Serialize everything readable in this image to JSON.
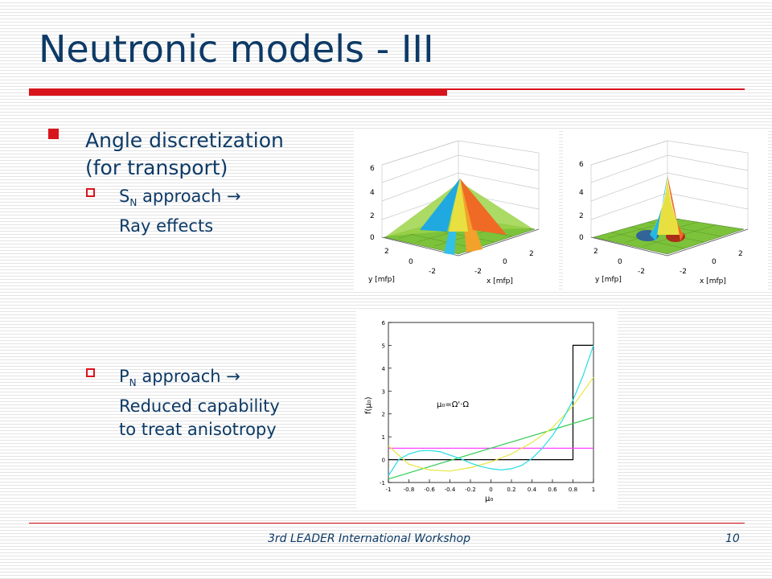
{
  "title": "Neutronic models - III",
  "colors": {
    "accent": "#d8141c",
    "text": "#0d3a66"
  },
  "bullet_main": {
    "line1": "Angle discretization",
    "line2": "(for transport)"
  },
  "sn": {
    "prefix": "S",
    "sub": "N",
    "rest": " approach →",
    "line2": "Ray effects"
  },
  "pn": {
    "prefix": "P",
    "sub": "N",
    "rest": " approach →",
    "line2": "Reduced capability",
    "line3": "to treat anisotropy"
  },
  "plot3d": {
    "z_ticks": [
      "0",
      "2",
      "4",
      "6"
    ],
    "y_ticks": [
      "2",
      "0",
      "-2"
    ],
    "x_ticks": [
      "-2",
      "0",
      "2"
    ],
    "y_label": "y [mfp]",
    "x_label": "x [mfp]"
  },
  "chart_data": {
    "type": "line",
    "xlabel": "μ₀",
    "ylabel": "f(μ₀)",
    "annotation": "μ₀=Ω'·Ω",
    "xlim": [
      -1,
      1
    ],
    "ylim": [
      -1,
      6
    ],
    "x_ticks": [
      "-1",
      "-0.8",
      "-0.6",
      "-0.4",
      "-0.2",
      "0",
      "0.2",
      "0.4",
      "0.6",
      "0.8",
      "1"
    ],
    "y_ticks": [
      "-1",
      "0",
      "1",
      "2",
      "3",
      "4",
      "5",
      "6"
    ],
    "series": [
      {
        "color": "#000000",
        "x": [
          -1,
          0.8,
          0.8,
          1
        ],
        "y": [
          0,
          0,
          5,
          5
        ]
      },
      {
        "color": "#ff44ff",
        "x": [
          -1,
          1
        ],
        "y": [
          0.5,
          0.5
        ]
      },
      {
        "color": "#33cc55",
        "x": [
          -1,
          1
        ],
        "y": [
          -0.85,
          1.85
        ]
      },
      {
        "color": "#e6e640",
        "x": [
          -1,
          -0.8,
          -0.6,
          -0.4,
          -0.2,
          0,
          0.2,
          0.4,
          0.6,
          0.8,
          1
        ],
        "y": [
          0.6,
          -0.2,
          -0.45,
          -0.5,
          -0.35,
          -0.1,
          0.25,
          0.75,
          1.4,
          2.35,
          3.6
        ]
      },
      {
        "color": "#22dde6",
        "x": [
          -1,
          -0.9,
          -0.8,
          -0.7,
          -0.6,
          -0.5,
          -0.4,
          -0.3,
          -0.2,
          -0.1,
          0,
          0.1,
          0.2,
          0.3,
          0.4,
          0.5,
          0.6,
          0.7,
          0.8,
          0.9,
          1
        ],
        "y": [
          -0.7,
          0.0,
          0.25,
          0.38,
          0.4,
          0.35,
          0.2,
          0.05,
          -0.15,
          -0.3,
          -0.4,
          -0.45,
          -0.4,
          -0.25,
          0.05,
          0.5,
          1.05,
          1.75,
          2.6,
          3.7,
          5.0
        ]
      }
    ]
  },
  "footer": {
    "workshop": "3rd LEADER International Workshop",
    "page": "10"
  }
}
